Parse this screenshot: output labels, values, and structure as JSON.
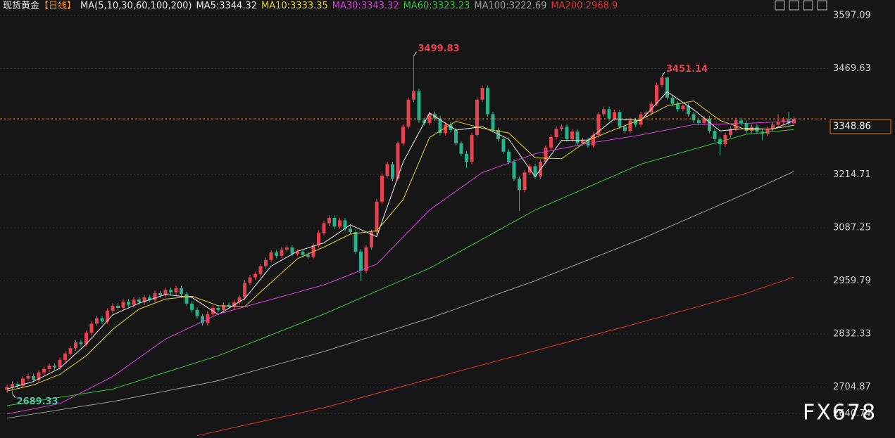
{
  "chart_data": {
    "type": "candlestick",
    "title": "现货黄金",
    "period": "【日线】",
    "indicator": "MA(5,10,30,60,100,200)",
    "watermark": "FX678",
    "up_color": "#e8414f",
    "down_color": "#26b38c",
    "last_price_color": "#e07b1a",
    "ylim": [
      2582.4,
      3603.84
    ],
    "yticks": [
      3597.09,
      3469.63,
      3214.71,
      3087.25,
      2959.79,
      2832.33,
      2704.87,
      2640.74
    ],
    "grid": true,
    "open": [
      2698,
      2705,
      2712,
      2708,
      2725,
      2731,
      2722,
      2740,
      2748,
      2756,
      2752,
      2770,
      2785,
      2798,
      2812,
      2808,
      2835,
      2857,
      2870,
      2862,
      2888,
      2900,
      2895,
      2910,
      2902,
      2915,
      2908,
      2920,
      2914,
      2930,
      2925,
      2938,
      2932,
      2942,
      2928,
      2905,
      2890,
      2875,
      2858,
      2880,
      2895,
      2890,
      2902,
      2898,
      2908,
      2920,
      2955,
      2968,
      2976,
      2995,
      3010,
      3028,
      3020,
      3035,
      3040,
      3025,
      3030,
      3022,
      3018,
      3045,
      3075,
      3098,
      3111,
      3090,
      3105,
      3085,
      3077,
      3030,
      2984,
      3040,
      3077,
      3150,
      3212,
      3240,
      3205,
      3290,
      3330,
      3395,
      3415,
      3345,
      3339,
      3360,
      3350,
      3315,
      3335,
      3322,
      3290,
      3265,
      3246,
      3310,
      3395,
      3423,
      3360,
      3322,
      3300,
      3270,
      3246,
      3205,
      3178,
      3220,
      3235,
      3210,
      3246,
      3280,
      3305,
      3325,
      3330,
      3300,
      3318,
      3290,
      3297,
      3285,
      3310,
      3360,
      3372,
      3350,
      3365,
      3330,
      3320,
      3345,
      3335,
      3360,
      3364,
      3385,
      3430,
      3448,
      3400,
      3385,
      3372,
      3380,
      3360,
      3345,
      3339,
      3350,
      3320,
      3300,
      3288,
      3310,
      3325,
      3345,
      3339,
      3320,
      3330,
      3318,
      3313,
      3325,
      3335,
      3342,
      3347,
      3338
    ],
    "high": [
      2711,
      2718,
      2718,
      2731,
      2737,
      2737,
      2746,
      2754,
      2762,
      2762,
      2776,
      2791,
      2804,
      2818,
      2818,
      2841,
      2863,
      2876,
      2876,
      2894,
      2906,
      2906,
      2916,
      2916,
      2921,
      2921,
      2926,
      2926,
      2936,
      2936,
      2944,
      2944,
      2948,
      2948,
      2934,
      2911,
      2896,
      2881,
      2886,
      2901,
      2901,
      2908,
      2908,
      2914,
      2926,
      2961,
      2974,
      2982,
      3001,
      3016,
      3034,
      3034,
      3041,
      3046,
      3046,
      3036,
      3036,
      3028,
      3051,
      3081,
      3104,
      3117,
      3117,
      3111,
      3111,
      3091,
      3083,
      3036,
      3046,
      3083,
      3156,
      3218,
      3246,
      3246,
      3296,
      3336,
      3401,
      3499.83,
      3421,
      3351,
      3366,
      3366,
      3356,
      3341,
      3341,
      3328,
      3296,
      3271,
      3316,
      3401,
      3429,
      3429,
      3366,
      3328,
      3306,
      3276,
      3252,
      3211,
      3226,
      3241,
      3241,
      3252,
      3286,
      3311,
      3331,
      3336,
      3336,
      3324,
      3324,
      3303,
      3303,
      3316,
      3366,
      3378,
      3378,
      3371,
      3371,
      3336,
      3351,
      3351,
      3366,
      3370,
      3391,
      3436,
      3451.14,
      3449,
      3406,
      3391,
      3386,
      3386,
      3366,
      3351,
      3356,
      3356,
      3326,
      3306,
      3316,
      3331,
      3351,
      3351,
      3345,
      3336,
      3336,
      3324,
      3331,
      3341,
      3360,
      3353,
      3365,
      3355
    ],
    "low": [
      2692,
      2689.33,
      2702,
      2702,
      2719,
      2716,
      2716,
      2734,
      2742,
      2746,
      2746,
      2764,
      2779,
      2792,
      2802,
      2802,
      2829,
      2851,
      2856,
      2856,
      2882,
      2889,
      2889,
      2896,
      2896,
      2902,
      2902,
      2908,
      2908,
      2919,
      2919,
      2926,
      2926,
      2922,
      2899,
      2884,
      2869,
      2852,
      2852,
      2874,
      2884,
      2884,
      2892,
      2892,
      2902,
      2914,
      2949,
      2962,
      2970,
      2989,
      3004,
      3014,
      3014,
      3029,
      3019,
      3019,
      3016,
      3012,
      3012,
      3039,
      3069,
      3092,
      3084,
      3084,
      3079,
      3071,
      3024,
      2960,
      2978,
      3034,
      3071,
      3144,
      3206,
      3199,
      3199,
      3284,
      3324,
      3389,
      3339,
      3333,
      3333,
      3344,
      3309,
      3309,
      3316,
      3284,
      3259,
      3230,
      3240,
      3304,
      3389,
      3354,
      3316,
      3294,
      3264,
      3240,
      3199,
      3128,
      3172,
      3214,
      3204,
      3204,
      3240,
      3274,
      3299,
      3319,
      3294,
      3294,
      3284,
      3284,
      3279,
      3279,
      3304,
      3354,
      3344,
      3344,
      3324,
      3314,
      3314,
      3329,
      3329,
      3354,
      3358,
      3379,
      3424,
      3394,
      3379,
      3366,
      3366,
      3354,
      3339,
      3333,
      3333,
      3314,
      3294,
      3262,
      3282,
      3304,
      3319,
      3333,
      3314,
      3314,
      3312,
      3297,
      3307,
      3319,
      3329,
      3336,
      3332,
      3332
    ],
    "close": [
      2705,
      2712,
      2708,
      2725,
      2731,
      2722,
      2740,
      2748,
      2756,
      2752,
      2770,
      2785,
      2798,
      2812,
      2808,
      2835,
      2857,
      2870,
      2862,
      2888,
      2900,
      2895,
      2910,
      2902,
      2915,
      2908,
      2920,
      2914,
      2930,
      2925,
      2938,
      2932,
      2942,
      2928,
      2905,
      2890,
      2875,
      2858,
      2880,
      2895,
      2890,
      2902,
      2898,
      2908,
      2920,
      2955,
      2968,
      2976,
      2995,
      3010,
      3028,
      3020,
      3035,
      3040,
      3025,
      3030,
      3022,
      3018,
      3045,
      3075,
      3098,
      3111,
      3090,
      3105,
      3085,
      3077,
      3030,
      2984,
      3040,
      3077,
      3150,
      3212,
      3240,
      3205,
      3290,
      3330,
      3395,
      3415,
      3345,
      3339,
      3360,
      3350,
      3315,
      3335,
      3322,
      3290,
      3265,
      3246,
      3310,
      3395,
      3423,
      3360,
      3322,
      3300,
      3270,
      3246,
      3205,
      3178,
      3220,
      3235,
      3210,
      3246,
      3280,
      3305,
      3325,
      3330,
      3300,
      3318,
      3290,
      3297,
      3285,
      3310,
      3360,
      3372,
      3350,
      3365,
      3330,
      3320,
      3345,
      3335,
      3360,
      3364,
      3385,
      3430,
      3448,
      3400,
      3385,
      3372,
      3380,
      3360,
      3345,
      3339,
      3350,
      3320,
      3300,
      3288,
      3310,
      3325,
      3345,
      3339,
      3320,
      3330,
      3318,
      3313,
      3325,
      3335,
      3342,
      3347,
      3338,
      3348.86
    ],
    "series": [
      {
        "name": "MA5:",
        "color": "#f0f0f0",
        "x": [
          0,
          5,
          10,
          15,
          20,
          25,
          30,
          35,
          40,
          45,
          50,
          55,
          60,
          65,
          70,
          75,
          80,
          85,
          90,
          95,
          100,
          105,
          110,
          115,
          120,
          125,
          130,
          135,
          140,
          145,
          149
        ],
        "values": [
          2700,
          2718,
          2750,
          2808,
          2878,
          2906,
          2927,
          2920,
          2879,
          2917,
          2995,
          3031,
          3051,
          3094,
          3066,
          3245,
          3363,
          3322,
          3330,
          3300,
          3210,
          3297,
          3298,
          3349,
          3345,
          3414,
          3371,
          3320,
          3326,
          3324,
          3344.32
        ]
      },
      {
        "name": "MA10:",
        "color": "#e3cf2b",
        "x": [
          0,
          5,
          10,
          15,
          20,
          25,
          30,
          35,
          40,
          45,
          50,
          55,
          60,
          65,
          70,
          75,
          80,
          85,
          90,
          95,
          100,
          105,
          110,
          115,
          120,
          125,
          130,
          135,
          140,
          145,
          149
        ],
        "values": [
          2695,
          2710,
          2735,
          2780,
          2843,
          2892,
          2916,
          2923,
          2900,
          2898,
          2956,
          3013,
          3041,
          3072,
          3080,
          3155,
          3304,
          3343,
          3326,
          3315,
          3255,
          3253,
          3297,
          3323,
          3347,
          3380,
          3392,
          3345,
          3323,
          3325,
          3333.35
        ]
      },
      {
        "name": "MA30:",
        "color": "#d63fd6",
        "x": [
          0,
          10,
          20,
          30,
          40,
          50,
          60,
          70,
          80,
          90,
          100,
          110,
          120,
          130,
          140,
          149
        ],
        "values": [
          2640,
          2665,
          2730,
          2820,
          2880,
          2915,
          2950,
          3000,
          3130,
          3220,
          3265,
          3290,
          3310,
          3335,
          3338,
          3343.32
        ]
      },
      {
        "name": "MA60:",
        "color": "#2fc33d",
        "x": [
          0,
          20,
          40,
          60,
          80,
          100,
          120,
          140,
          149
        ],
        "values": [
          2660,
          2700,
          2780,
          2880,
          2990,
          3130,
          3240,
          3312,
          3323.23
        ]
      },
      {
        "name": "MA100:",
        "color": "#9a9a9a",
        "x": [
          0,
          20,
          40,
          60,
          80,
          100,
          120,
          140,
          149
        ],
        "values": [
          2630,
          2670,
          2720,
          2790,
          2870,
          2960,
          3060,
          3170,
          3222.69
        ]
      },
      {
        "name": "MA200:",
        "color": "#e02f2f",
        "x": [
          36,
          60,
          80,
          100,
          120,
          140,
          149
        ],
        "values": [
          2588,
          2655,
          2724,
          2792,
          2860,
          2930,
          2968.9
        ]
      }
    ]
  }
}
